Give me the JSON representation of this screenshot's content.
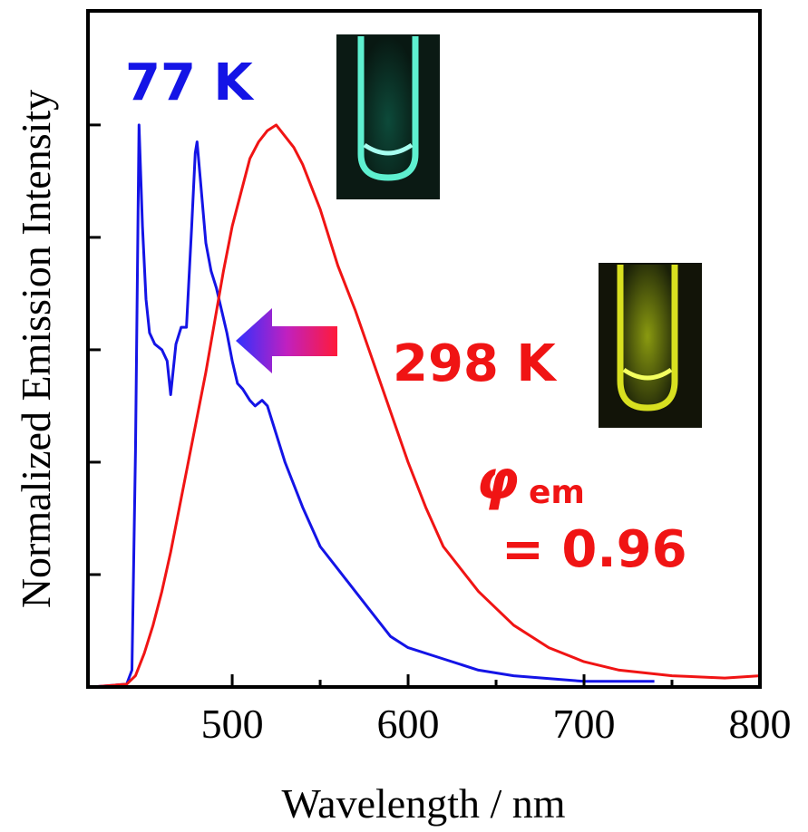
{
  "chart_data": {
    "type": "line",
    "xlabel": "Wavelength / nm",
    "ylabel": "Normalized Emission Intensity",
    "xlim": [
      418,
      800
    ],
    "ylim": [
      0,
      1.203
    ],
    "xticks": [
      500,
      600,
      700,
      800
    ],
    "xminorticks": [
      550,
      650,
      750
    ],
    "yticks": [
      0,
      0.2,
      0.4,
      0.6,
      0.8,
      1.0
    ],
    "series": [
      {
        "name": "77 K",
        "color": "#1414e6",
        "x": [
          420,
          440,
          443,
          445,
          447,
          449,
          451,
          453,
          456,
          460,
          463,
          465,
          468,
          471,
          474,
          477,
          479,
          480,
          482,
          485,
          488,
          491,
          494,
          497,
          500,
          503,
          506,
          510,
          513,
          517,
          520,
          525,
          530,
          540,
          550,
          560,
          570,
          580,
          590,
          600,
          620,
          640,
          660,
          700,
          740
        ],
        "values": [
          0,
          0.005,
          0.03,
          0.42,
          1.0,
          0.82,
          0.69,
          0.63,
          0.61,
          0.6,
          0.58,
          0.52,
          0.61,
          0.64,
          0.64,
          0.82,
          0.95,
          0.97,
          0.9,
          0.79,
          0.74,
          0.71,
          0.67,
          0.63,
          0.58,
          0.54,
          0.53,
          0.51,
          0.5,
          0.51,
          0.5,
          0.45,
          0.4,
          0.32,
          0.25,
          0.21,
          0.17,
          0.13,
          0.09,
          0.07,
          0.05,
          0.03,
          0.02,
          0.01,
          0.01
        ]
      },
      {
        "name": "298 K",
        "color": "#f01414",
        "x": [
          420,
          440,
          445,
          450,
          455,
          460,
          465,
          470,
          475,
          480,
          485,
          490,
          495,
          500,
          505,
          510,
          515,
          520,
          525,
          530,
          535,
          540,
          550,
          560,
          570,
          580,
          590,
          600,
          610,
          620,
          640,
          660,
          680,
          700,
          720,
          750,
          780,
          800
        ],
        "values": [
          0,
          0.005,
          0.02,
          0.06,
          0.11,
          0.17,
          0.24,
          0.32,
          0.4,
          0.48,
          0.56,
          0.65,
          0.74,
          0.82,
          0.88,
          0.94,
          0.97,
          0.99,
          1.0,
          0.98,
          0.96,
          0.93,
          0.85,
          0.75,
          0.67,
          0.58,
          0.49,
          0.4,
          0.32,
          0.25,
          0.17,
          0.11,
          0.07,
          0.045,
          0.03,
          0.02,
          0.016,
          0.02
        ]
      }
    ],
    "annotation": {
      "symbol": "φ",
      "subscript": "em",
      "text": "= 0.96"
    }
  }
}
